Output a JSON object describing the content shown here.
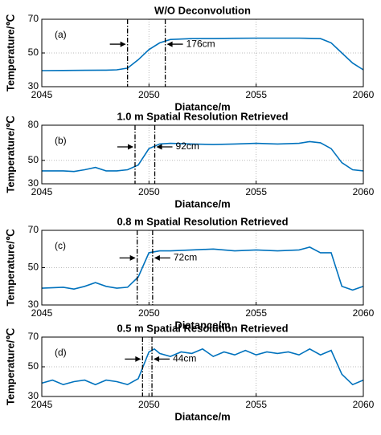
{
  "chart_data": [
    {
      "type": "line",
      "title": "W/O Deconvolution",
      "x_label": "Diatance/m",
      "y_label": "Temperature/℃",
      "panel_label": "(a)",
      "annotation": "176cm",
      "x": [
        2045,
        2046,
        2047,
        2048,
        2048.5,
        2049,
        2049.5,
        2050,
        2050.5,
        2051,
        2052,
        2053,
        2054,
        2055,
        2056,
        2057,
        2058,
        2058.5,
        2059,
        2059.5,
        2060
      ],
      "series": [
        {
          "color": "#0072bd",
          "values": [
            39.5,
            39.6,
            39.7,
            39.8,
            40,
            41,
            46,
            52,
            56,
            58,
            58.5,
            58.6,
            58.7,
            58.8,
            58.8,
            58.8,
            58.5,
            56,
            50,
            44,
            40
          ]
        }
      ],
      "vlines": [
        2049,
        2050.76
      ],
      "xlim": [
        2045,
        2060
      ],
      "xticks": [
        2045,
        2050,
        2055,
        2060
      ],
      "ylim": [
        30,
        70
      ],
      "yticks": [
        30,
        50,
        70
      ],
      "grid": true
    },
    {
      "type": "line",
      "title": "1.0 m Spatial Resolution Retrieved",
      "x_label": "Diatance/m",
      "y_label": "Temperature/℃",
      "panel_label": "(b)",
      "annotation": "92cm",
      "x": [
        2045,
        2046,
        2046.5,
        2047,
        2047.5,
        2048,
        2048.5,
        2049,
        2049.5,
        2050,
        2050.5,
        2051,
        2052,
        2053,
        2054,
        2055,
        2056,
        2057,
        2057.5,
        2058,
        2058.5,
        2059,
        2059.5,
        2060
      ],
      "series": [
        {
          "color": "#0072bd",
          "values": [
            41,
            41,
            40.5,
            42,
            44,
            41,
            41,
            42,
            46,
            60,
            64,
            64.5,
            64,
            63.5,
            64,
            64.5,
            64,
            64.5,
            66,
            65,
            60,
            48,
            42,
            41
          ]
        }
      ],
      "vlines": [
        2049.35,
        2050.27
      ],
      "xlim": [
        2045,
        2060
      ],
      "xticks": [
        2045,
        2050,
        2055,
        2060
      ],
      "ylim": [
        30,
        80
      ],
      "yticks": [
        30,
        50,
        80
      ],
      "grid": true
    },
    {
      "type": "line",
      "title": "0.8 m Spatial Resolution Retrieved",
      "x_label": "Diatance/m",
      "y_label": "Temperature/℃",
      "panel_label": "(c)",
      "annotation": "72cm",
      "x": [
        2045,
        2046,
        2046.5,
        2047,
        2047.5,
        2048,
        2048.5,
        2049,
        2049.5,
        2050,
        2050.5,
        2051,
        2052,
        2053,
        2054,
        2055,
        2056,
        2057,
        2057.5,
        2058,
        2058.5,
        2059,
        2059.5,
        2060
      ],
      "series": [
        {
          "color": "#0072bd",
          "values": [
            39,
            39.5,
            38.5,
            40,
            42,
            40,
            39,
            39.5,
            45,
            58,
            59,
            59,
            59.5,
            60,
            59,
            59.5,
            59,
            59.5,
            61,
            58,
            58,
            40,
            38,
            40
          ]
        }
      ],
      "vlines": [
        2049.45,
        2050.17
      ],
      "xlim": [
        2045,
        2060
      ],
      "xticks": [
        2045,
        2050,
        2055,
        2060
      ],
      "ylim": [
        30,
        70
      ],
      "yticks": [
        30,
        50,
        70
      ],
      "grid": true
    },
    {
      "type": "line",
      "title": "0.5 m Spatial Resolution Retrieved",
      "x_label": "Diatance/m",
      "y_label": "Temperature/℃",
      "panel_label": "(d)",
      "annotation": "44cm",
      "x": [
        2045,
        2045.5,
        2046,
        2046.5,
        2047,
        2047.5,
        2048,
        2048.5,
        2049,
        2049.5,
        2050,
        2050.25,
        2050.5,
        2051,
        2051.5,
        2052,
        2052.5,
        2053,
        2053.5,
        2054,
        2054.5,
        2055,
        2055.5,
        2056,
        2056.5,
        2057,
        2057.5,
        2058,
        2058.5,
        2059,
        2059.5,
        2060
      ],
      "series": [
        {
          "color": "#0072bd",
          "values": [
            39,
            41,
            38,
            40,
            41,
            38,
            41,
            40,
            38,
            42,
            60,
            62,
            59,
            57,
            60,
            59,
            62,
            57,
            60,
            58,
            61,
            58,
            60,
            59,
            60,
            58,
            62,
            58,
            61,
            45,
            38,
            41
          ]
        }
      ],
      "vlines": [
        2049.7,
        2050.14
      ],
      "xlim": [
        2045,
        2060
      ],
      "xticks": [
        2045,
        2050,
        2055,
        2060
      ],
      "ylim": [
        30,
        70
      ],
      "yticks": [
        30,
        50,
        70
      ],
      "grid": true
    }
  ]
}
